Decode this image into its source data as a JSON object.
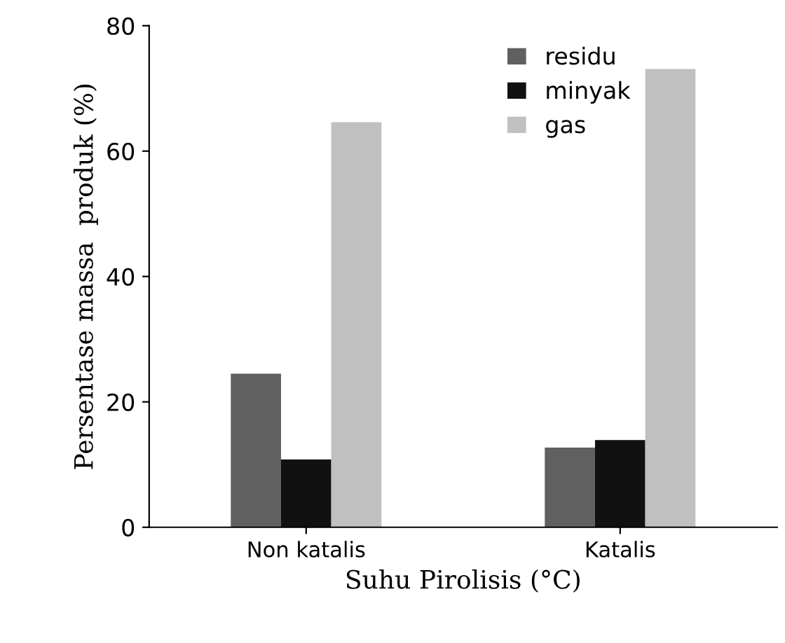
{
  "chart_data": {
    "type": "bar",
    "xlabel": "Suhu Pirolisis (°C)",
    "ylabel": "Persentase massa  produk (%)",
    "categories": [
      "Non katalis",
      "Katalis"
    ],
    "series": [
      {
        "name": "residu",
        "color": "#606060",
        "values": [
          24.5,
          12.7
        ]
      },
      {
        "name": "minyak",
        "color": "#111111",
        "values": [
          10.8,
          13.9
        ]
      },
      {
        "name": "gas",
        "color": "#c0c0c0",
        "values": [
          64.6,
          73.1
        ]
      }
    ],
    "ylim": [
      0,
      80
    ],
    "yticks": [
      0,
      20,
      40,
      60,
      80
    ],
    "grid": false,
    "legend": "top right"
  }
}
